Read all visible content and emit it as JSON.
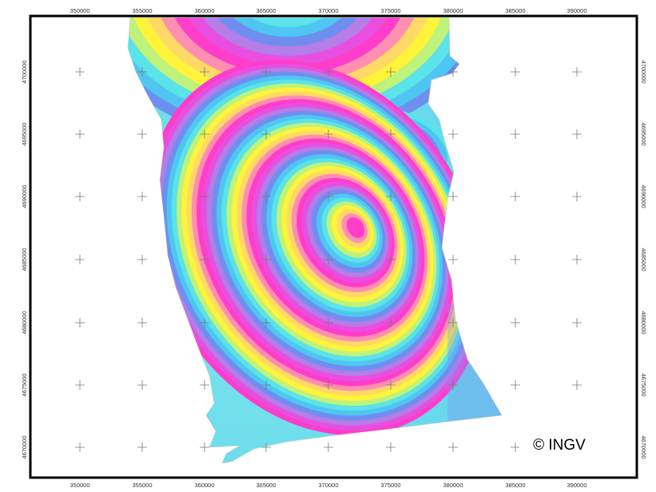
{
  "map": {
    "x_ticks": [
      "350000",
      "355000",
      "360000",
      "365000",
      "370000",
      "375000",
      "380000",
      "385000",
      "390000"
    ],
    "y_ticks": [
      "4700000",
      "4695000",
      "4690000",
      "4685000",
      "4680000",
      "4675000",
      "4670000"
    ],
    "copyright": "© INGV"
  },
  "colors": {
    "frame": "#000000",
    "grid_cross": "#777777",
    "fringe_cycle": [
      "#ff3dcb",
      "#ff8fb0",
      "#ffd966",
      "#fff43a",
      "#bff27a",
      "#5ae3e8",
      "#4fc6f2",
      "#6e8ff0",
      "#b47de8",
      "#e84fe0"
    ]
  }
}
